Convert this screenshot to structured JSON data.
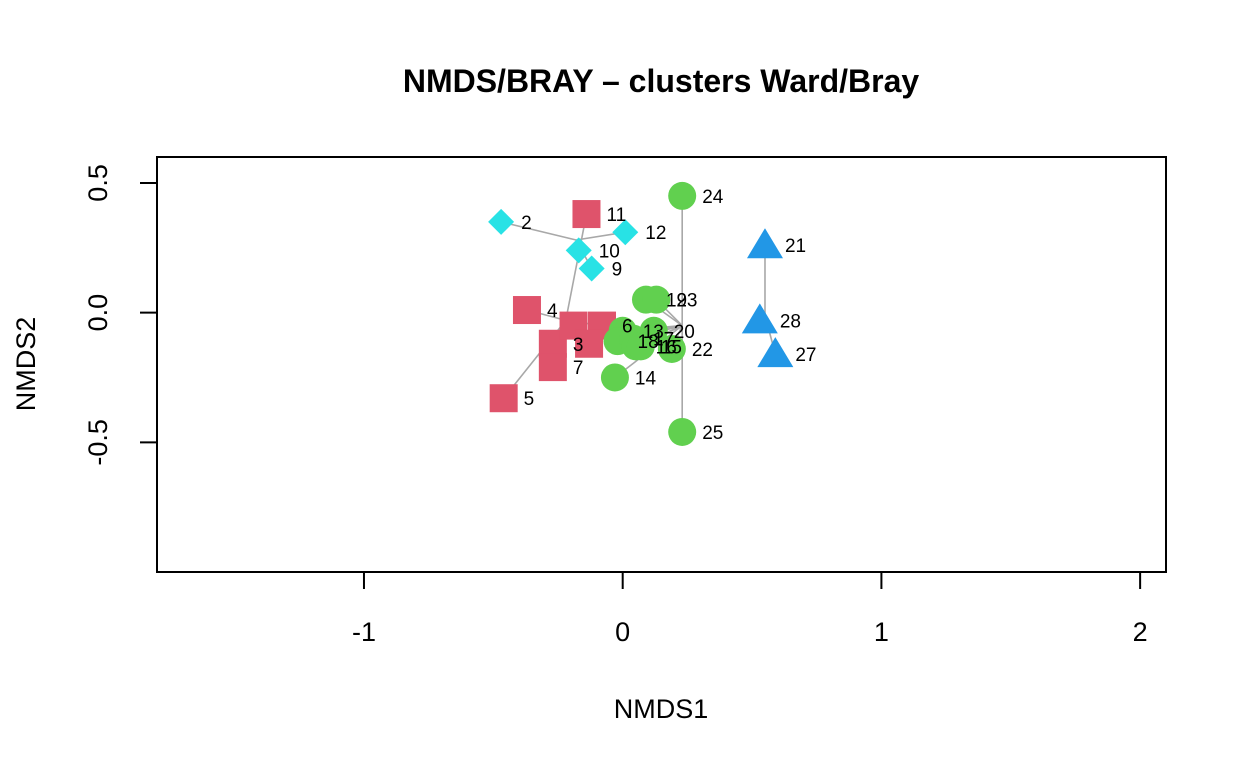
{
  "chart_data": {
    "type": "scatter",
    "title": "NMDS/BRAY – clusters Ward/Bray",
    "xlabel": "NMDS1",
    "ylabel": "NMDS2",
    "xlim": [
      -1.8,
      2.1
    ],
    "ylim": [
      -1.0,
      0.6
    ],
    "x_ticks": [
      -1,
      0,
      1,
      2
    ],
    "x_tick_labels": [
      "-1",
      "0",
      "1",
      "2"
    ],
    "y_ticks": [
      -0.5,
      0.0,
      0.5
    ],
    "y_tick_labels": [
      "-0.5",
      "0.0",
      "0.5"
    ],
    "grid": false,
    "legend": "none",
    "spider_color": "#a8a8a8",
    "clusters": [
      {
        "shape": "square",
        "color": "#df536b",
        "centroid": [
          -0.22,
          -0.03
        ],
        "points": [
          {
            "label": "11",
            "x": -0.14,
            "y": 0.38
          },
          {
            "label": "4",
            "x": -0.37,
            "y": 0.01
          },
          {
            "label": "6",
            "x": -0.08,
            "y": -0.05
          },
          {
            "label": "3",
            "x": -0.27,
            "y": -0.12
          },
          {
            "label": "7",
            "x": -0.27,
            "y": -0.21
          },
          {
            "label": "5",
            "x": -0.46,
            "y": -0.33
          },
          {
            "label": "",
            "x": -0.19,
            "y": -0.05
          },
          {
            "label": "",
            "x": -0.13,
            "y": -0.12
          }
        ]
      },
      {
        "shape": "diamond",
        "color": "#28e2e5",
        "centroid": [
          -0.18,
          0.28
        ],
        "points": [
          {
            "label": "2",
            "x": -0.47,
            "y": 0.35
          },
          {
            "label": "12",
            "x": 0.01,
            "y": 0.31
          },
          {
            "label": "10",
            "x": -0.17,
            "y": 0.24
          },
          {
            "label": "9",
            "x": -0.12,
            "y": 0.17
          }
        ]
      },
      {
        "shape": "circle",
        "color": "#61d04f",
        "centroid": [
          0.23,
          -0.05
        ],
        "points": [
          {
            "label": "24",
            "x": 0.23,
            "y": 0.45
          },
          {
            "label": "19",
            "x": 0.09,
            "y": 0.05
          },
          {
            "label": "23",
            "x": 0.13,
            "y": 0.05
          },
          {
            "label": "13",
            "x": 0.0,
            "y": -0.07
          },
          {
            "label": "20",
            "x": 0.12,
            "y": -0.07
          },
          {
            "label": "18",
            "x": -0.02,
            "y": -0.11
          },
          {
            "label": "17",
            "x": 0.04,
            "y": -0.1
          },
          {
            "label": "16",
            "x": 0.05,
            "y": -0.13
          },
          {
            "label": "15",
            "x": 0.07,
            "y": -0.13
          },
          {
            "label": "22",
            "x": 0.19,
            "y": -0.14
          },
          {
            "label": "14",
            "x": -0.03,
            "y": -0.25
          },
          {
            "label": "25",
            "x": 0.23,
            "y": -0.46
          }
        ]
      },
      {
        "shape": "triangle",
        "color": "#2297e6",
        "centroid": [
          0.55,
          -0.01
        ],
        "points": [
          {
            "label": "21",
            "x": 0.55,
            "y": 0.26
          },
          {
            "label": "28",
            "x": 0.53,
            "y": -0.03
          },
          {
            "label": "27",
            "x": 0.59,
            "y": -0.16
          }
        ]
      }
    ]
  }
}
